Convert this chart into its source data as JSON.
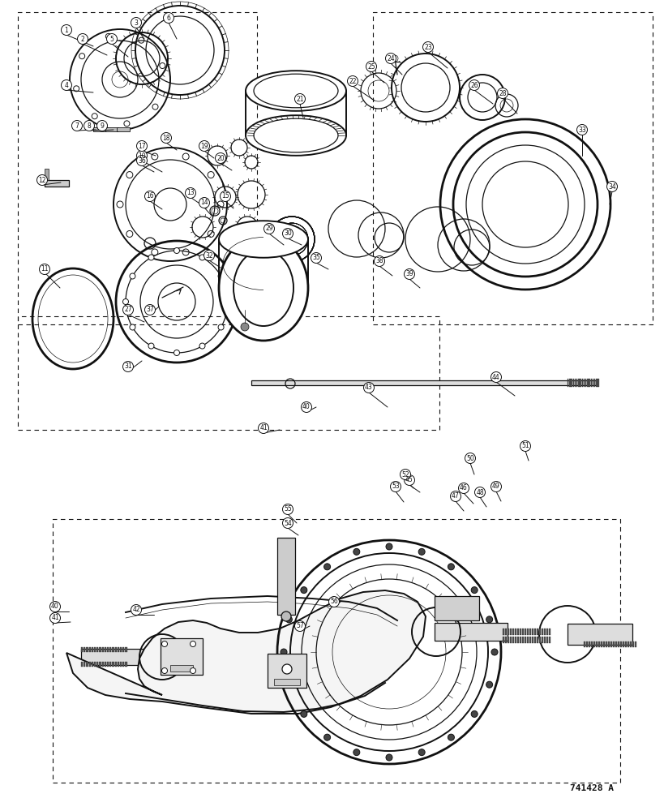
{
  "figure_size": [
    8.2,
    10.0
  ],
  "dpi": 100,
  "background_color": "#ffffff",
  "line_color": "#111111",
  "label_font_size": 6.5,
  "watermark": "741428 A",
  "title": ""
}
